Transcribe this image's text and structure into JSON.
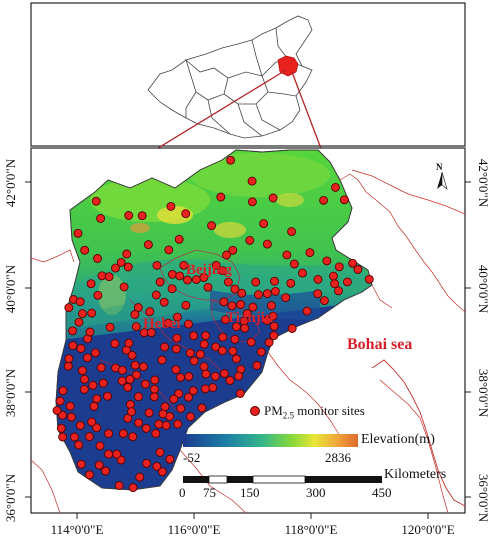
{
  "map": {
    "axes": {
      "left_ticks": [
        "42°0'0\"N",
        "40°0'0\"N",
        "38°0'0\"N",
        "36°0'0\"N"
      ],
      "right_ticks": [
        "42°0'0\"N",
        "40°0'0\"N",
        "38°0'0\"N",
        "36°0'0\"N"
      ],
      "bottom_ticks": [
        "114°0'0\"E",
        "116°0'0\"E",
        "118°0'0\"E",
        "120°0'0\"E"
      ]
    },
    "places": {
      "beijing": "Beijing",
      "hebei": "Hebei",
      "tianjin": "Tianjin",
      "bohai": "Bohai sea"
    },
    "legend": {
      "sites_label": "PM",
      "sites_sub": "2.5",
      "sites_rest": " monitor sites",
      "elev_title": "Elevation(m)",
      "elev_min": "-52",
      "elev_max": "2836",
      "scale_title": "Kilometers",
      "scale_ticks": [
        "0",
        "75",
        "150",
        "300",
        "450"
      ]
    },
    "north_label": "N",
    "colors": {
      "site_fill": "#e8221f",
      "frame": "#222222",
      "china_highlight": "#e8221f",
      "connector": "#b32424",
      "coast": "#c4312b",
      "elev_low": "#1b3c8f",
      "elev_mid": "#2cb6a2",
      "elev_high": "#e07030"
    }
  }
}
